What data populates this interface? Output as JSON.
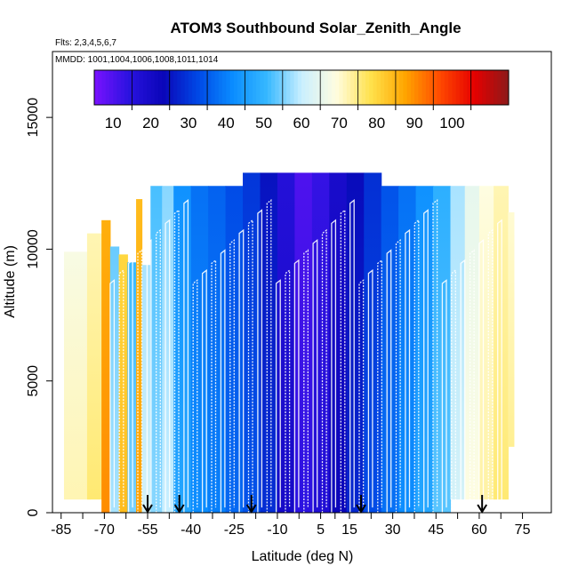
{
  "chart_data": {
    "type": "heatmap",
    "title": "ATOM3 Southbound Solar_Zenith_Angle",
    "flights_note": "Flts: 2,3,4,5,6,7",
    "dates_note": "MMDD: 1001,1004,1006,1008,1011,1014",
    "xlabel": "Latitude (deg N)",
    "ylabel": "Altitude (m)",
    "xlim": [
      -88,
      85
    ],
    "ylim": [
      0,
      17500
    ],
    "x_ticks": [
      -85,
      -70,
      -55,
      -40,
      -25,
      -10,
      5,
      15,
      30,
      45,
      60,
      75
    ],
    "y_ticks": [
      0,
      5000,
      10000,
      15000
    ],
    "colorbar": {
      "ticks": [
        10,
        20,
        30,
        40,
        50,
        60,
        70,
        80,
        90,
        100
      ],
      "range": [
        5,
        115
      ],
      "colors": [
        "#7a12ff",
        "#2a12e0",
        "#0a06b8",
        "#0048e6",
        "#0a8cff",
        "#36b8ff",
        "#c9efff",
        "#fffde0",
        "#ffe24d",
        "#ffa500",
        "#ff4a00",
        "#e60000",
        "#8c1a1a"
      ]
    },
    "flight_markers_lat": [
      -55,
      -44,
      -19,
      19,
      61
    ],
    "bands": [
      {
        "lat_min": -84,
        "lat_max": -75,
        "alt_min": 500,
        "alt_max": 9900,
        "value": 72
      },
      {
        "lat_min": -76,
        "lat_max": -71,
        "alt_min": 500,
        "alt_max": 10600,
        "value": 76
      },
      {
        "lat_min": -71,
        "lat_max": -68,
        "alt_min": 0,
        "alt_max": 11100,
        "value": 90
      },
      {
        "lat_min": -68,
        "lat_max": -65,
        "alt_min": 0,
        "alt_max": 10100,
        "value": 58
      },
      {
        "lat_min": -65,
        "lat_max": -62,
        "alt_min": 0,
        "alt_max": 9800,
        "value": 84
      },
      {
        "lat_min": -62,
        "lat_max": -59,
        "alt_min": 0,
        "alt_max": 9500,
        "value": 55
      },
      {
        "lat_min": -59,
        "lat_max": -57,
        "alt_min": 0,
        "alt_max": 11900,
        "value": 88
      },
      {
        "lat_min": -57,
        "lat_max": -54,
        "alt_min": 0,
        "alt_max": 9400,
        "value": 62
      },
      {
        "lat_min": -54,
        "lat_max": -50,
        "alt_min": 0,
        "alt_max": 12400,
        "value": 56
      },
      {
        "lat_min": -50,
        "lat_max": -46,
        "alt_min": 0,
        "alt_max": 12400,
        "value": 60
      },
      {
        "lat_min": -46,
        "lat_max": -40,
        "alt_min": 0,
        "alt_max": 12400,
        "value": 47
      },
      {
        "lat_min": -40,
        "lat_max": -34,
        "alt_min": 0,
        "alt_max": 12400,
        "value": 42
      },
      {
        "lat_min": -34,
        "lat_max": -28,
        "alt_min": 0,
        "alt_max": 12400,
        "value": 40
      },
      {
        "lat_min": -28,
        "lat_max": -22,
        "alt_min": 0,
        "alt_max": 12400,
        "value": 37
      },
      {
        "lat_min": -22,
        "lat_max": -16,
        "alt_min": 0,
        "alt_max": 12900,
        "value": 34
      },
      {
        "lat_min": -16,
        "lat_max": -10,
        "alt_min": 0,
        "alt_max": 12900,
        "value": 29
      },
      {
        "lat_min": -10,
        "lat_max": -4,
        "alt_min": 0,
        "alt_max": 12900,
        "value": 20
      },
      {
        "lat_min": -4,
        "lat_max": 2,
        "alt_min": 0,
        "alt_max": 12900,
        "value": 14
      },
      {
        "lat_min": 2,
        "lat_max": 8,
        "alt_min": 0,
        "alt_max": 12900,
        "value": 17
      },
      {
        "lat_min": 8,
        "lat_max": 14,
        "alt_min": 0,
        "alt_max": 12900,
        "value": 23
      },
      {
        "lat_min": 14,
        "lat_max": 20,
        "alt_min": 0,
        "alt_max": 12900,
        "value": 28
      },
      {
        "lat_min": 20,
        "lat_max": 26,
        "alt_min": 0,
        "alt_max": 12900,
        "value": 33
      },
      {
        "lat_min": 26,
        "lat_max": 32,
        "alt_min": 0,
        "alt_max": 12400,
        "value": 38
      },
      {
        "lat_min": 32,
        "lat_max": 38,
        "alt_min": 0,
        "alt_max": 12400,
        "value": 42
      },
      {
        "lat_min": 38,
        "lat_max": 44,
        "alt_min": 0,
        "alt_max": 12400,
        "value": 47
      },
      {
        "lat_min": 44,
        "lat_max": 50,
        "alt_min": 0,
        "alt_max": 12400,
        "value": 53
      },
      {
        "lat_min": 50,
        "lat_max": 55,
        "alt_min": 500,
        "alt_max": 12400,
        "value": 62
      },
      {
        "lat_min": 55,
        "lat_max": 60,
        "alt_min": 500,
        "alt_max": 12400,
        "value": 69
      },
      {
        "lat_min": 60,
        "lat_max": 65,
        "alt_min": 500,
        "alt_max": 12400,
        "value": 73
      },
      {
        "lat_min": 65,
        "lat_max": 70,
        "alt_min": 500,
        "alt_max": 12400,
        "value": 76
      },
      {
        "lat_min": 70,
        "lat_max": 72,
        "alt_min": 2500,
        "alt_max": 11400,
        "value": 74
      }
    ]
  }
}
